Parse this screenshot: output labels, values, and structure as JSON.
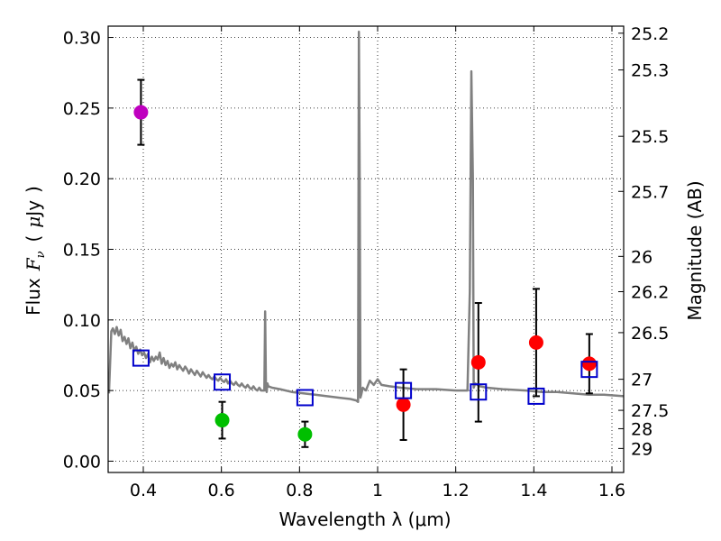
{
  "chart_data": {
    "type": "scatter",
    "xlabel": "Wavelength  λ (μm)",
    "ylabel_parts": [
      "Flux",
      "F",
      "ν",
      "(",
      "μ",
      "Jy",
      ")"
    ],
    "y2label": "Magnitude (AB)",
    "xlim": [
      0.31,
      1.63
    ],
    "ylim": [
      -0.008,
      0.308
    ],
    "x_ticks": [
      0.4,
      0.6,
      0.8,
      1.0,
      1.2,
      1.4,
      1.6
    ],
    "x_tick_labels": [
      "0.4",
      "0.6",
      "0.8",
      "1",
      "1.2",
      "1.4",
      "1.6"
    ],
    "y_ticks": [
      0.0,
      0.05,
      0.1,
      0.15,
      0.2,
      0.25,
      0.3
    ],
    "y_tick_labels": [
      "0.00",
      "0.05",
      "0.10",
      "0.15",
      "0.20",
      "0.25",
      "0.30"
    ],
    "mag_ticks": [
      {
        "label": "25.2",
        "flux": 0.303
      },
      {
        "label": "25.3",
        "flux": 0.277
      },
      {
        "label": "25.5",
        "flux": 0.23
      },
      {
        "label": "25.7",
        "flux": 0.191
      },
      {
        "label": "26",
        "flux": 0.145
      },
      {
        "label": "26.2",
        "flux": 0.12
      },
      {
        "label": "26.5",
        "flux": 0.091
      },
      {
        "label": "27",
        "flux": 0.058
      },
      {
        "label": "27.5",
        "flux": 0.036
      },
      {
        "label": "28",
        "flux": 0.023
      },
      {
        "label": "29",
        "flux": 0.009
      }
    ],
    "grid": true,
    "model_spectrum": {
      "name": "model spectrum",
      "color": "#808080",
      "x": [
        0.312,
        0.318,
        0.322,
        0.327,
        0.332,
        0.337,
        0.342,
        0.347,
        0.352,
        0.357,
        0.362,
        0.367,
        0.372,
        0.377,
        0.382,
        0.387,
        0.392,
        0.397,
        0.402,
        0.407,
        0.412,
        0.417,
        0.422,
        0.427,
        0.432,
        0.437,
        0.442,
        0.447,
        0.452,
        0.457,
        0.462,
        0.467,
        0.472,
        0.477,
        0.482,
        0.487,
        0.492,
        0.497,
        0.502,
        0.507,
        0.512,
        0.517,
        0.522,
        0.527,
        0.532,
        0.537,
        0.542,
        0.547,
        0.552,
        0.557,
        0.562,
        0.567,
        0.572,
        0.577,
        0.582,
        0.587,
        0.592,
        0.597,
        0.602,
        0.607,
        0.612,
        0.617,
        0.622,
        0.627,
        0.632,
        0.637,
        0.642,
        0.647,
        0.652,
        0.657,
        0.662,
        0.667,
        0.672,
        0.677,
        0.682,
        0.687,
        0.692,
        0.697,
        0.702,
        0.707,
        0.71,
        0.712,
        0.714,
        0.716,
        0.718,
        0.72,
        0.73,
        0.75,
        0.78,
        0.81,
        0.84,
        0.87,
        0.9,
        0.93,
        0.945,
        0.95,
        0.952,
        0.954,
        0.956,
        0.958,
        0.962,
        0.97,
        0.98,
        0.99,
        1.0,
        1.01,
        1.03,
        1.06,
        1.1,
        1.15,
        1.2,
        1.23,
        1.236,
        1.24,
        1.244,
        1.246,
        1.25,
        1.256,
        1.262,
        1.28,
        1.32,
        1.38,
        1.42,
        1.46,
        1.5,
        1.54,
        1.58,
        1.63
      ],
      "y": [
        0.048,
        0.092,
        0.094,
        0.09,
        0.095,
        0.089,
        0.093,
        0.085,
        0.088,
        0.083,
        0.087,
        0.08,
        0.084,
        0.078,
        0.081,
        0.076,
        0.079,
        0.075,
        0.077,
        0.073,
        0.076,
        0.07,
        0.074,
        0.071,
        0.074,
        0.072,
        0.077,
        0.069,
        0.073,
        0.068,
        0.071,
        0.066,
        0.069,
        0.067,
        0.07,
        0.065,
        0.068,
        0.066,
        0.064,
        0.067,
        0.065,
        0.062,
        0.065,
        0.063,
        0.061,
        0.064,
        0.062,
        0.06,
        0.063,
        0.061,
        0.059,
        0.061,
        0.059,
        0.058,
        0.06,
        0.058,
        0.057,
        0.059,
        0.057,
        0.056,
        0.058,
        0.055,
        0.057,
        0.055,
        0.054,
        0.056,
        0.054,
        0.053,
        0.055,
        0.053,
        0.052,
        0.054,
        0.052,
        0.051,
        0.053,
        0.051,
        0.05,
        0.052,
        0.05,
        0.05,
        0.05,
        0.106,
        0.051,
        0.049,
        0.055,
        0.053,
        0.052,
        0.051,
        0.049,
        0.048,
        0.047,
        0.046,
        0.045,
        0.044,
        0.043,
        0.042,
        0.304,
        0.2,
        0.045,
        0.047,
        0.052,
        0.05,
        0.057,
        0.054,
        0.058,
        0.054,
        0.053,
        0.052,
        0.051,
        0.051,
        0.05,
        0.05,
        0.12,
        0.276,
        0.2,
        0.052,
        0.055,
        0.054,
        0.053,
        0.052,
        0.051,
        0.05,
        0.049,
        0.049,
        0.048,
        0.047,
        0.047,
        0.046
      ]
    },
    "photometry": [
      {
        "x": 0.394,
        "y": 0.247,
        "err": 0.023,
        "color": "#bf00bf"
      },
      {
        "x": 0.602,
        "y": 0.029,
        "err": 0.013,
        "color": "#00bf00"
      },
      {
        "x": 0.814,
        "y": 0.019,
        "err": 0.009,
        "color": "#00bf00"
      },
      {
        "x": 1.066,
        "y": 0.04,
        "err": 0.025,
        "color": "#ff0000"
      },
      {
        "x": 1.258,
        "y": 0.07,
        "err": 0.042,
        "color": "#ff0000"
      },
      {
        "x": 1.406,
        "y": 0.084,
        "err": 0.038,
        "color": "#ff0000"
      },
      {
        "x": 1.542,
        "y": 0.069,
        "err": 0.021,
        "color": "#ff0000"
      }
    ],
    "model_bandpass": {
      "color": "#0000cc",
      "x": [
        0.394,
        0.602,
        0.814,
        1.066,
        1.258,
        1.406,
        1.542
      ],
      "y": [
        0.073,
        0.056,
        0.045,
        0.05,
        0.049,
        0.046,
        0.065
      ]
    }
  }
}
